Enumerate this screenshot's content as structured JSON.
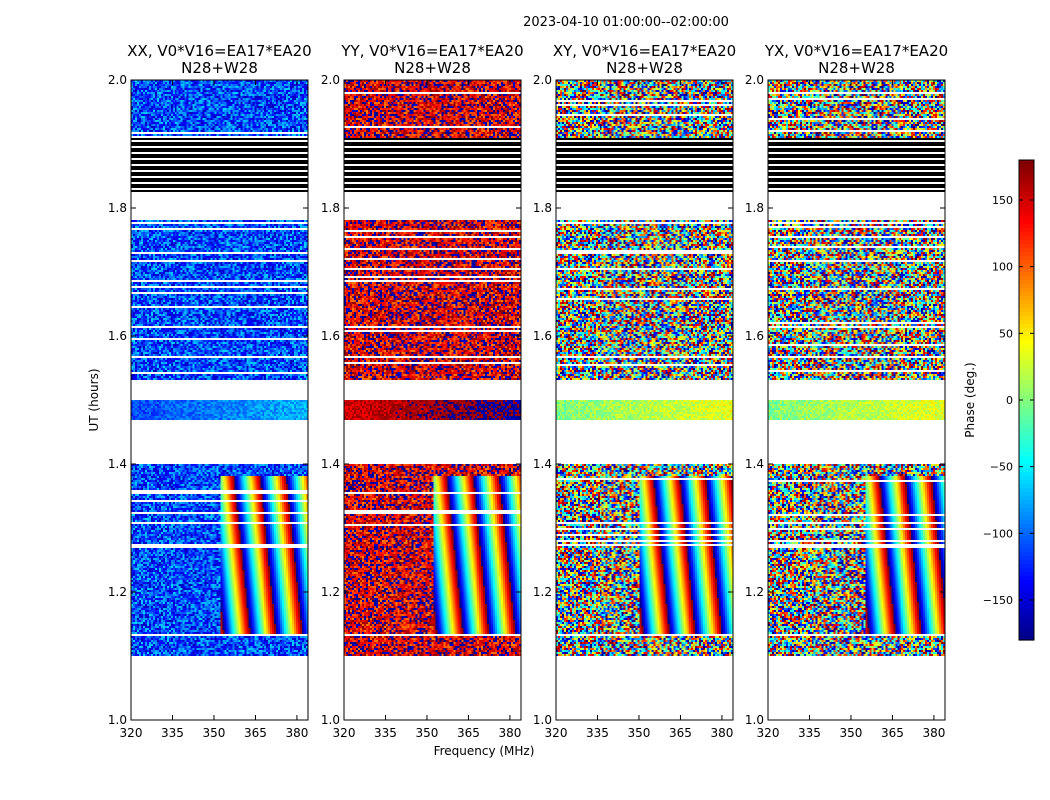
{
  "figure": {
    "suptitle": "2023-04-10  01:00:00--02:00:00",
    "xlabel": "Frequency (MHz)",
    "ylabel": "UT (hours)"
  },
  "chart_data": {
    "type": "heatmap",
    "panels": [
      {
        "id": "xx",
        "title_line1": "XX, V0*V16=EA17*EA20",
        "title_line2": "N28+W28",
        "mean_phase": -110,
        "phase_spread": 50,
        "fringe_start_mhz": 352
      },
      {
        "id": "yy",
        "title_line1": "YY, V0*V16=EA17*EA20",
        "title_line2": "N28+W28",
        "mean_phase": 150,
        "phase_spread": 60,
        "fringe_start_mhz": 352
      },
      {
        "id": "xy",
        "title_line1": "XY, V0*V16=EA17*EA20",
        "title_line2": "N28+W28",
        "mean_phase": 0,
        "phase_spread": 180,
        "fringe_start_mhz": 350
      },
      {
        "id": "yx",
        "title_line1": "YX, V0*V16=EA17*EA20",
        "title_line2": "N28+W28",
        "mean_phase": 0,
        "phase_spread": 180,
        "fringe_start_mhz": 355
      }
    ],
    "x_axis": {
      "range": [
        320,
        384
      ],
      "ticks": [
        320,
        335,
        350,
        365,
        380
      ],
      "tick_labels": [
        "320",
        "335",
        "350",
        "365",
        "380"
      ],
      "label": "Frequency (MHz)"
    },
    "y_axis": {
      "range": [
        1.0,
        2.0
      ],
      "ticks": [
        1.0,
        1.2,
        1.4,
        1.6,
        1.8,
        2.0
      ],
      "tick_labels": [
        "1.0",
        "1.2",
        "1.4",
        "1.6",
        "1.8",
        "2.0"
      ],
      "label": "UT (hours)"
    },
    "time_blocks_hours": [
      {
        "start": 1.1,
        "end": 1.13,
        "kind": "dense"
      },
      {
        "start": 1.135,
        "end": 1.26,
        "kind": "fringe"
      },
      {
        "start": 1.26,
        "end": 1.38,
        "kind": "fringe_gappy"
      },
      {
        "start": 1.38,
        "end": 1.4,
        "kind": "dense"
      },
      {
        "start": 1.47,
        "end": 1.5,
        "kind": "smooth"
      },
      {
        "start": 1.53,
        "end": 1.565,
        "kind": "gappy"
      },
      {
        "start": 1.57,
        "end": 1.585,
        "kind": "dense"
      },
      {
        "start": 1.585,
        "end": 1.78,
        "kind": "noisy"
      },
      {
        "start": 1.825,
        "end": 1.91,
        "kind": "black"
      },
      {
        "start": 1.91,
        "end": 2.0,
        "kind": "gappy"
      }
    ],
    "colorbar": {
      "label": "Phase (deg.)",
      "range": [
        -180,
        180
      ],
      "ticks": [
        -150,
        -100,
        -50,
        0,
        50,
        100,
        150
      ],
      "tick_labels": [
        "−150",
        "−100",
        "−50",
        "0",
        "50",
        "100",
        "150"
      ],
      "colormap": "jet"
    }
  }
}
